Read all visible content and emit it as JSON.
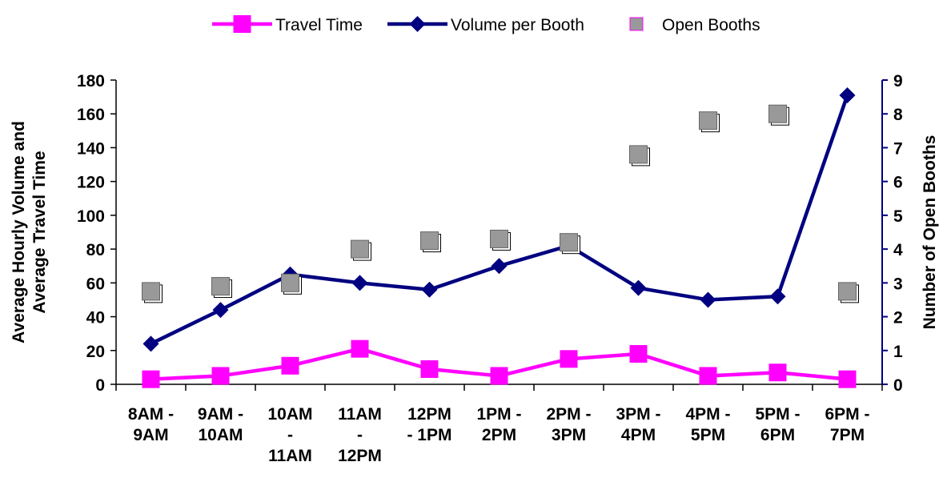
{
  "chart_data": {
    "type": "line",
    "categories": [
      [
        "8AM -",
        "9AM"
      ],
      [
        "9AM -",
        "10AM"
      ],
      [
        "10AM",
        "-",
        "11AM"
      ],
      [
        "11AM",
        "-",
        "12PM"
      ],
      [
        "12PM",
        "- 1PM"
      ],
      [
        "1PM -",
        "2PM"
      ],
      [
        "2PM -",
        "3PM"
      ],
      [
        "3PM -",
        "4PM"
      ],
      [
        "4PM -",
        "5PM"
      ],
      [
        "5PM -",
        "6PM"
      ],
      [
        "6PM -",
        "7PM"
      ]
    ],
    "ylabel_left": [
      "Average Hourly Volume and",
      "Average Travel Time"
    ],
    "ylabel_right": "Number of Open Booths",
    "ylim_left": [
      0,
      180
    ],
    "yticks_left": [
      "0",
      "20",
      "40",
      "60",
      "80",
      "100",
      "120",
      "140",
      "160",
      "180"
    ],
    "ylim_right": [
      0,
      9
    ],
    "yticks_right": [
      "0",
      "1",
      "2",
      "3",
      "4",
      "5",
      "6",
      "7",
      "8",
      "9"
    ],
    "legend_position": "top-center",
    "series": [
      {
        "name": "Travel Time",
        "axis": "left",
        "kind": "line",
        "color": "#ff00ff",
        "marker": "square",
        "values": [
          3,
          5,
          11,
          21,
          9,
          5,
          15,
          18,
          5,
          7,
          3
        ]
      },
      {
        "name": "Volume per Booth",
        "axis": "left",
        "kind": "line",
        "color": "#000080",
        "marker": "diamond",
        "values": [
          24,
          44,
          65,
          60,
          56,
          70,
          82,
          57,
          50,
          52,
          171
        ]
      },
      {
        "name": "Open Booths",
        "axis": "right",
        "kind": "scatter",
        "color": "#999999",
        "marker": "square-shadow",
        "values": [
          2.75,
          2.9,
          3.0,
          4.0,
          4.25,
          4.3,
          4.2,
          6.8,
          7.8,
          8.0,
          2.75
        ]
      }
    ]
  }
}
